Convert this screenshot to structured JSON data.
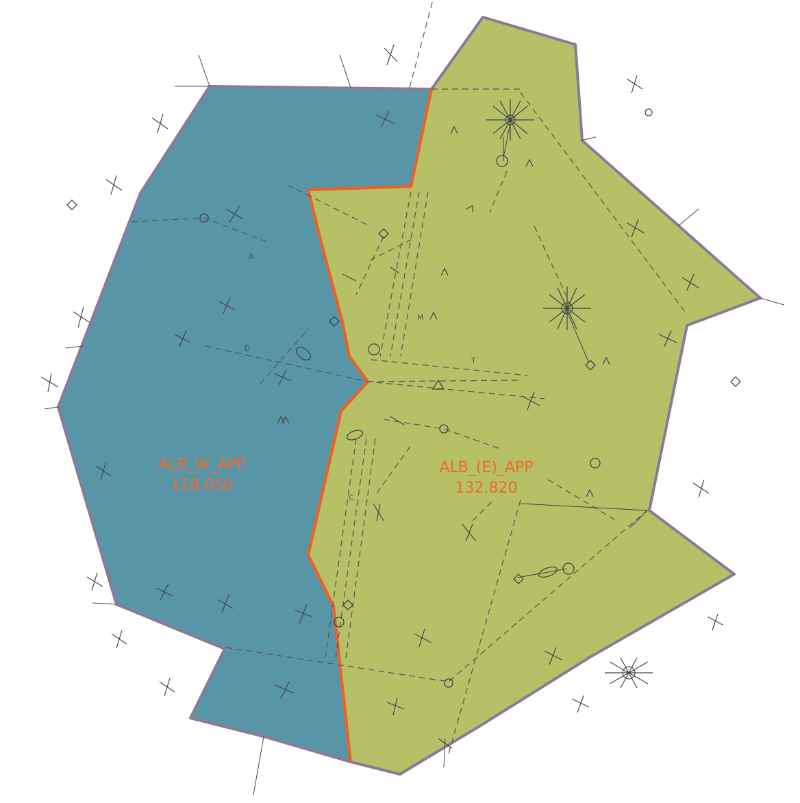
{
  "map": {
    "colors": {
      "west_sector": "#5896a7",
      "east_sector": "#b5c067",
      "sector_outline": "#8a7a98",
      "split_line": "#f25f1e",
      "label": "#f26a2e",
      "symbol": "#444444"
    },
    "sectors": [
      {
        "id": "west",
        "name": "ALB_W_APP",
        "frequency": "118.050"
      },
      {
        "id": "east",
        "name": "ALB_(E)_APP",
        "frequency": "132.820"
      }
    ],
    "chart_letters": [
      "A",
      "D",
      "C",
      "M",
      "T"
    ]
  }
}
